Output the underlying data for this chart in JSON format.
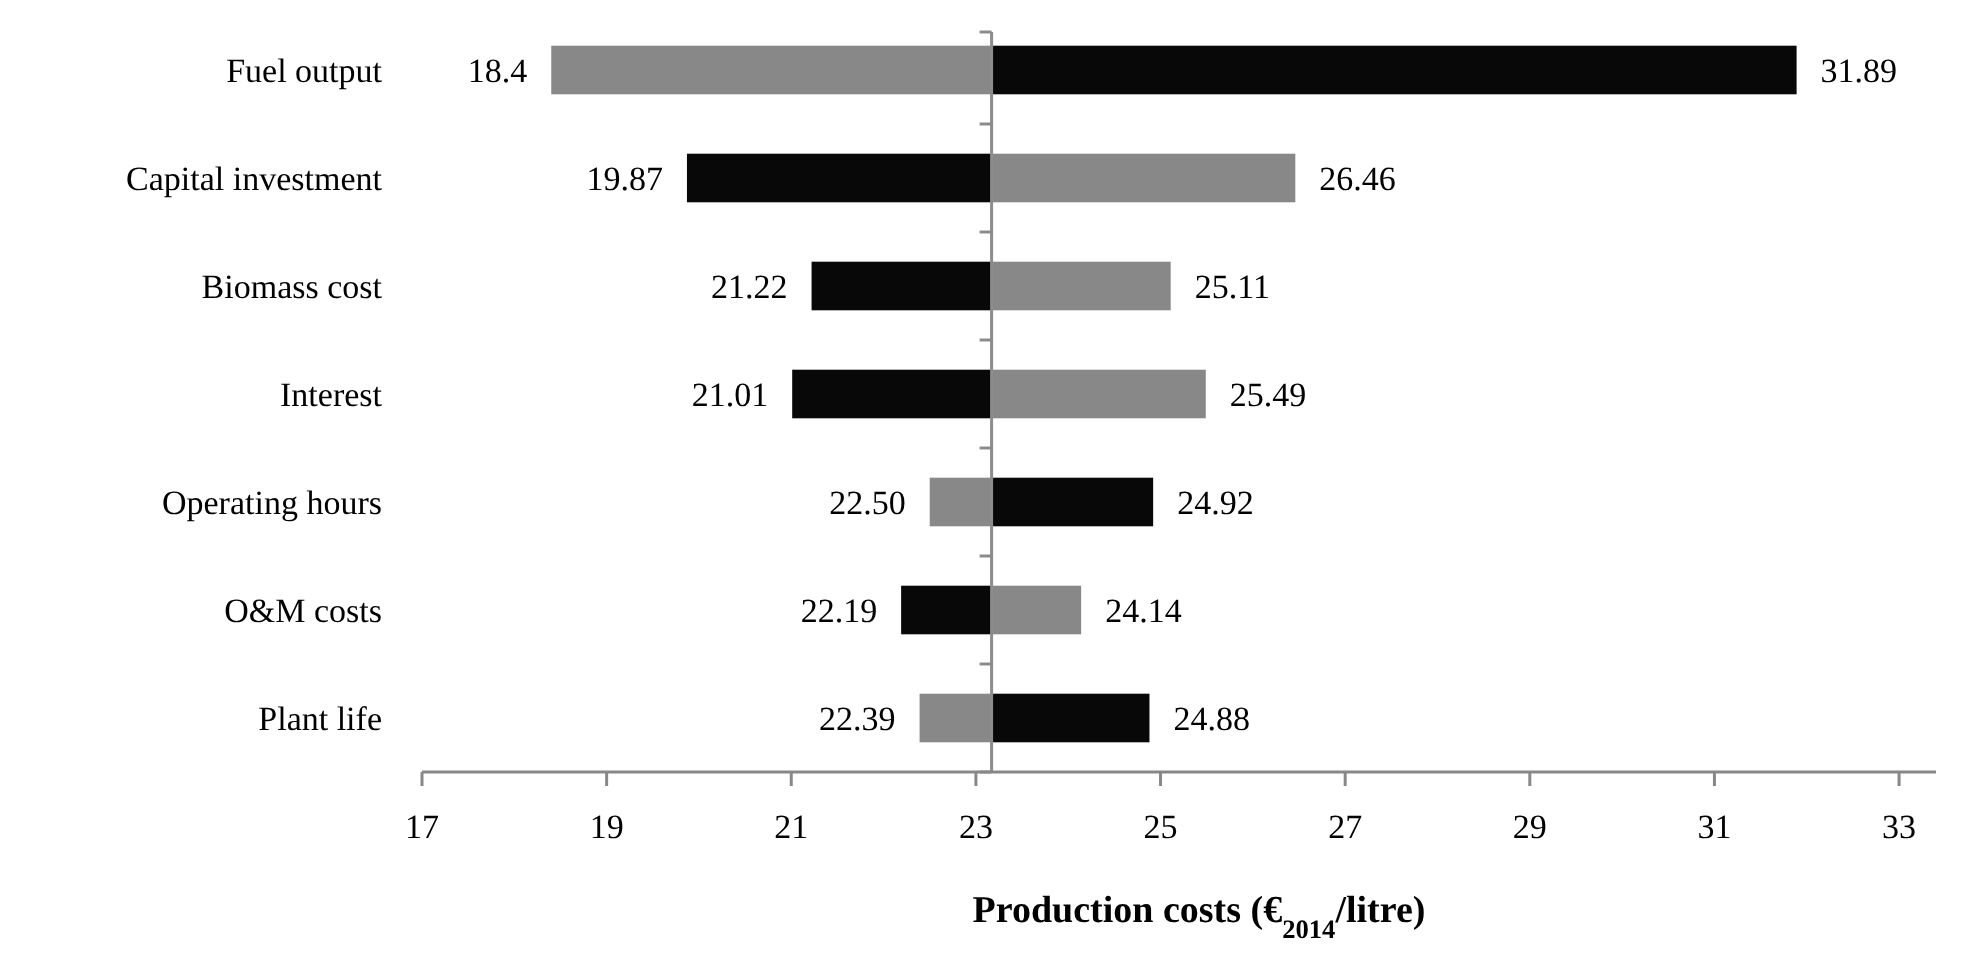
{
  "chart_data": {
    "type": "bar",
    "orientation": "horizontal",
    "xlabel": "Production costs (€$_{2014}$/litre)",
    "categories": [
      "Fuel output",
      "Capital investment",
      "Biomass cost",
      "Interest",
      "Operating hours",
      "O&M costs",
      "Plant life"
    ],
    "xlim": [
      17,
      33.4
    ],
    "xticks": [
      17,
      19,
      21,
      23,
      25,
      27,
      29,
      31,
      33
    ],
    "grid": false,
    "ref_lines": [
      {
        "axis": "x",
        "value": 23.17,
        "color": "#8c8c8c"
      }
    ],
    "series": [
      {
        "base": [
          23.17,
          23.17,
          23.17,
          23.17,
          23.17,
          23.17,
          23.17
        ],
        "values": [
          -4.77,
          -3.3,
          -1.95,
          -2.16,
          -0.67,
          -0.98,
          -0.78
        ],
        "colors": [
          "#888888",
          "#080808",
          "#080808",
          "#080808",
          "#888888",
          "#080808",
          "#888888"
        ],
        "value_labels": [
          "18.4",
          "19.87",
          "21.22",
          "21.01",
          "22.50",
          "22.19",
          "22.39"
        ]
      },
      {
        "base": [
          23.17,
          23.17,
          23.17,
          23.17,
          23.17,
          23.17,
          23.17
        ],
        "values": [
          8.72,
          3.29,
          1.94,
          2.32,
          1.75,
          0.97,
          1.71
        ],
        "colors": [
          "#080808",
          "#888888",
          "#888888",
          "#888888",
          "#080808",
          "#888888",
          "#080808"
        ],
        "value_labels": [
          "31.89",
          "26.46",
          "25.11",
          "25.49",
          "24.92",
          "24.14",
          "24.88"
        ]
      }
    ]
  }
}
